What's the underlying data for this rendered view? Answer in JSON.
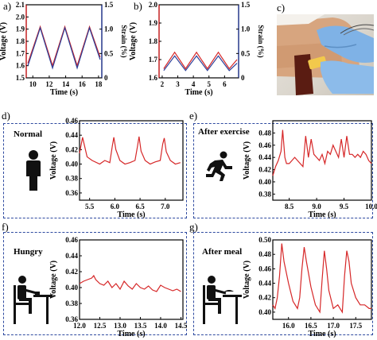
{
  "panels": {
    "a": {
      "letter": "a)",
      "chart_data": {
        "type": "line",
        "xlabel": "Time (s)",
        "ylabel": "Voltage (V)",
        "y2label": "Strain (%)",
        "xlim": [
          9.2,
          18.4
        ],
        "ylim": [
          1.5,
          2.1
        ],
        "y2lim": [
          0,
          1.5
        ],
        "xticks": [
          10,
          12,
          14,
          16,
          18
        ],
        "yticks": [
          1.5,
          1.6,
          1.7,
          1.8,
          1.9,
          2.0,
          2.1
        ],
        "y2ticks": [
          0,
          0.5,
          1.0,
          1.5
        ],
        "series": [
          {
            "color": "#d62728",
            "x": [
              9.4,
              10.9,
              12.4,
              13.9,
              15.4,
              16.9,
              18.2
            ],
            "y": [
              1.62,
              1.92,
              1.6,
              1.92,
              1.6,
              1.92,
              1.67
            ]
          },
          {
            "color": "#2c3f99",
            "x": [
              9.4,
              10.9,
              12.4,
              13.9,
              15.4,
              16.9,
              18.2
            ],
            "y": [
              1.6,
              1.91,
              1.58,
              1.91,
              1.58,
              1.91,
              1.65
            ]
          }
        ]
      }
    },
    "b": {
      "letter": "b)",
      "chart_data": {
        "type": "line",
        "xlabel": "Time (s)",
        "ylabel": "Voltage (V)",
        "y2label": "Strain (%)",
        "xlim": [
          1.8,
          6.9
        ],
        "ylim": [
          1.6,
          2.0
        ],
        "y2lim": [
          0,
          1.5
        ],
        "xticks": [
          2,
          3,
          4,
          5,
          6
        ],
        "yticks": [
          1.6,
          1.7,
          1.8,
          1.9,
          2.0
        ],
        "y2ticks": [
          0,
          0.5,
          1.0,
          1.5
        ],
        "series": [
          {
            "color": "#d62728",
            "x": [
              2.1,
              2.8,
              3.5,
              4.2,
              4.9,
              5.6,
              6.3,
              6.8
            ],
            "y": [
              1.65,
              1.74,
              1.65,
              1.74,
              1.65,
              1.74,
              1.65,
              1.7
            ]
          },
          {
            "color": "#2c3f99",
            "x": [
              2.1,
              2.8,
              3.5,
              4.2,
              4.9,
              5.6,
              6.3,
              6.8
            ],
            "y": [
              1.64,
              1.72,
              1.64,
              1.72,
              1.64,
              1.72,
              1.64,
              1.68
            ]
          }
        ]
      }
    },
    "c": {
      "letter": "c)"
    },
    "d": {
      "letter": "d)",
      "condition": "Normal",
      "chart_data": {
        "type": "line",
        "xlabel": "Time (s)",
        "ylabel": "Voltage (V)",
        "xlim": [
          5.3,
          7.35
        ],
        "ylim": [
          0.35,
          0.46
        ],
        "xticks": [
          5.5,
          6.0,
          6.5,
          7.0
        ],
        "yticks": [
          0.36,
          0.38,
          0.4,
          0.42,
          0.44,
          0.46
        ],
        "series": [
          {
            "color": "#d62728",
            "x": [
              5.3,
              5.36,
              5.4,
              5.45,
              5.55,
              5.7,
              5.8,
              5.9,
              5.95,
              5.98,
              6.02,
              6.1,
              6.2,
              6.3,
              6.4,
              6.45,
              6.48,
              6.52,
              6.6,
              6.7,
              6.8,
              6.9,
              6.95,
              6.98,
              7.02,
              7.1,
              7.2,
              7.3
            ],
            "y": [
              0.415,
              0.437,
              0.425,
              0.41,
              0.405,
              0.4,
              0.405,
              0.402,
              0.425,
              0.437,
              0.42,
              0.405,
              0.4,
              0.402,
              0.405,
              0.425,
              0.438,
              0.418,
              0.405,
              0.4,
              0.403,
              0.405,
              0.428,
              0.436,
              0.417,
              0.405,
              0.4,
              0.402
            ]
          }
        ]
      }
    },
    "e": {
      "letter": "e)",
      "condition": "After exercise",
      "chart_data": {
        "type": "line",
        "xlabel": "Time (s)",
        "ylabel": "Voltage (V)",
        "xlim": [
          8.2,
          10.0
        ],
        "ylim": [
          0.37,
          0.5
        ],
        "xticks": [
          8.5,
          9.0,
          9.5,
          10.0
        ],
        "yticks": [
          0.38,
          0.4,
          0.42,
          0.44,
          0.46,
          0.48
        ],
        "series": [
          {
            "color": "#d62728",
            "x": [
              8.2,
              8.25,
              8.3,
              8.35,
              8.38,
              8.42,
              8.45,
              8.5,
              8.55,
              8.6,
              8.65,
              8.7,
              8.75,
              8.8,
              8.85,
              8.9,
              8.95,
              9.0,
              9.05,
              9.1,
              9.15,
              9.2,
              9.25,
              9.3,
              9.35,
              9.4,
              9.45,
              9.5,
              9.55,
              9.6,
              9.65,
              9.7,
              9.75,
              9.8,
              9.85,
              9.9,
              9.95,
              10.0
            ],
            "y": [
              0.41,
              0.425,
              0.435,
              0.45,
              0.485,
              0.44,
              0.43,
              0.43,
              0.435,
              0.44,
              0.435,
              0.43,
              0.425,
              0.475,
              0.44,
              0.47,
              0.445,
              0.44,
              0.435,
              0.445,
              0.43,
              0.45,
              0.445,
              0.46,
              0.45,
              0.44,
              0.47,
              0.44,
              0.475,
              0.445,
              0.445,
              0.44,
              0.445,
              0.44,
              0.45,
              0.445,
              0.435,
              0.43
            ]
          }
        ]
      }
    },
    "f": {
      "letter": "f)",
      "condition": "Hungry",
      "chart_data": {
        "type": "line",
        "xlabel": "Time (s)",
        "ylabel": "Voltage (V)",
        "xlim": [
          12.0,
          14.55
        ],
        "ylim": [
          0.36,
          0.46
        ],
        "xticks": [
          12.0,
          12.5,
          13.0,
          13.5,
          14.0,
          14.5
        ],
        "yticks": [
          0.36,
          0.38,
          0.4,
          0.42,
          0.44,
          0.46
        ],
        "series": [
          {
            "color": "#d62728",
            "x": [
              12.0,
              12.1,
              12.2,
              12.3,
              12.35,
              12.4,
              12.5,
              12.6,
              12.7,
              12.8,
              12.9,
              13.0,
              13.1,
              13.2,
              13.3,
              13.4,
              13.5,
              13.6,
              13.7,
              13.8,
              13.9,
              14.0,
              14.1,
              14.2,
              14.3,
              14.4,
              14.5
            ],
            "y": [
              0.405,
              0.408,
              0.41,
              0.412,
              0.415,
              0.41,
              0.405,
              0.403,
              0.408,
              0.4,
              0.405,
              0.398,
              0.408,
              0.402,
              0.398,
              0.405,
              0.4,
              0.398,
              0.402,
              0.397,
              0.395,
              0.403,
              0.4,
              0.398,
              0.396,
              0.398,
              0.395
            ]
          }
        ]
      }
    },
    "g": {
      "letter": "g)",
      "condition": "After meal",
      "chart_data": {
        "type": "line",
        "xlabel": "Time (s)",
        "ylabel": "Voltage (V)",
        "xlim": [
          15.65,
          17.85
        ],
        "ylim": [
          0.39,
          0.5
        ],
        "xticks": [
          16.0,
          16.5,
          17.0,
          17.5
        ],
        "yticks": [
          0.4,
          0.42,
          0.44,
          0.46,
          0.48,
          0.5
        ],
        "series": [
          {
            "color": "#d62728",
            "x": [
              15.65,
              15.7,
              15.75,
              15.8,
              15.85,
              15.9,
              16.0,
              16.1,
              16.2,
              16.25,
              16.3,
              16.35,
              16.4,
              16.5,
              16.6,
              16.7,
              16.75,
              16.8,
              16.85,
              16.9,
              17.0,
              17.1,
              17.2,
              17.25,
              17.3,
              17.35,
              17.4,
              17.5,
              17.6,
              17.7,
              17.8,
              17.85
            ],
            "y": [
              0.41,
              0.405,
              0.42,
              0.45,
              0.495,
              0.47,
              0.44,
              0.415,
              0.405,
              0.42,
              0.46,
              0.49,
              0.47,
              0.435,
              0.41,
              0.4,
              0.445,
              0.485,
              0.46,
              0.43,
              0.405,
              0.41,
              0.4,
              0.45,
              0.485,
              0.47,
              0.44,
              0.42,
              0.41,
              0.41,
              0.405,
              0.405
            ]
          }
        ]
      }
    }
  },
  "colors": {
    "panel_border": "#2e4aa0",
    "voltage_axis": "#d62728",
    "strain_axis": "#2c3f99"
  }
}
